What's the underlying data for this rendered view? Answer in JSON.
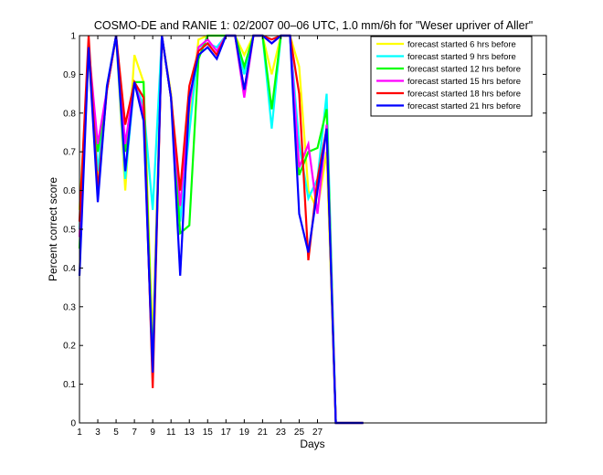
{
  "chart_data": {
    "type": "line",
    "title": "COSMO-DE and RANIE 1: 02/2007 00–06 UTC, 1.0 mm/6h for \"Weser upriver of Aller\"",
    "xlabel": "Days",
    "ylabel": "Percent correct score",
    "xlim": [
      1,
      52
    ],
    "ylim": [
      0,
      1
    ],
    "x_ticks": [
      1,
      3,
      5,
      7,
      9,
      11,
      13,
      15,
      17,
      19,
      21,
      23,
      25,
      27
    ],
    "y_ticks": [
      "0",
      "0.1",
      "0.2",
      "0.3",
      "0.4",
      "0.5",
      "0.6",
      "0.7",
      "0.8",
      "0.9",
      "1"
    ],
    "y_tick_values": [
      0,
      0.1,
      0.2,
      0.3,
      0.4,
      0.5,
      0.6,
      0.7,
      0.8,
      0.9,
      1
    ],
    "legend_position": "top-right",
    "grid": false,
    "x": [
      1,
      2,
      3,
      4,
      5,
      6,
      7,
      8,
      9,
      10,
      11,
      12,
      13,
      14,
      15,
      16,
      17,
      18,
      19,
      20,
      21,
      22,
      23,
      24,
      25,
      26,
      27,
      28,
      29,
      30,
      31,
      32
    ],
    "series": [
      {
        "name": "forecast started 6 hrs before",
        "color": "#ffff00",
        "values": [
          0.55,
          0.95,
          0.62,
          0.86,
          1.0,
          0.6,
          0.95,
          0.88,
          0.2,
          1.0,
          0.85,
          0.55,
          0.78,
          0.99,
          1.0,
          1.0,
          1.0,
          1.0,
          0.95,
          1.0,
          1.0,
          0.9,
          1.0,
          1.0,
          0.92,
          0.6,
          0.55,
          0.7,
          0.0,
          0.0,
          0.0,
          0.0
        ]
      },
      {
        "name": "forecast started 9 hrs before",
        "color": "#00ffff",
        "values": [
          0.5,
          0.96,
          0.65,
          0.87,
          1.0,
          0.63,
          0.88,
          0.82,
          0.55,
          1.0,
          0.84,
          0.52,
          0.75,
          0.97,
          0.98,
          0.97,
          1.0,
          1.0,
          0.9,
          1.0,
          1.0,
          0.76,
          1.0,
          1.0,
          0.72,
          0.58,
          0.63,
          0.85,
          0.0,
          0.0,
          0.0,
          0.0
        ]
      },
      {
        "name": "forecast started 12 hrs before",
        "color": "#00ff00",
        "values": [
          0.45,
          0.96,
          0.7,
          0.86,
          1.0,
          0.7,
          0.88,
          0.88,
          0.14,
          1.0,
          0.84,
          0.49,
          0.51,
          0.94,
          1.0,
          1.0,
          1.0,
          1.0,
          0.92,
          1.0,
          1.0,
          0.81,
          1.0,
          1.0,
          0.64,
          0.7,
          0.71,
          0.81,
          0.0,
          0.0,
          0.0,
          0.0
        ]
      },
      {
        "name": "forecast started 15 hrs before",
        "color": "#ff00ff",
        "values": [
          0.48,
          0.97,
          0.72,
          0.86,
          1.0,
          0.72,
          0.88,
          0.8,
          0.12,
          1.0,
          0.84,
          0.56,
          0.82,
          0.97,
          0.99,
          0.96,
          1.0,
          1.0,
          0.84,
          1.0,
          1.0,
          0.98,
          1.0,
          1.0,
          0.66,
          0.72,
          0.54,
          0.77,
          0.0,
          0.0,
          0.0,
          0.0
        ]
      },
      {
        "name": "forecast started 18 hrs before",
        "color": "#ff0000",
        "values": [
          0.52,
          1.0,
          0.6,
          0.86,
          1.0,
          0.77,
          0.88,
          0.84,
          0.09,
          1.0,
          0.84,
          0.6,
          0.87,
          0.96,
          0.98,
          0.95,
          1.0,
          1.0,
          0.86,
          1.0,
          1.0,
          0.99,
          1.0,
          1.0,
          0.85,
          0.42,
          0.63,
          0.76,
          0.0,
          0.0,
          0.0,
          0.0
        ]
      },
      {
        "name": "forecast started 21 hrs before",
        "color": "#0000ff",
        "values": [
          0.38,
          0.97,
          0.57,
          0.87,
          1.0,
          0.65,
          0.88,
          0.78,
          0.13,
          1.0,
          0.84,
          0.38,
          0.84,
          0.95,
          0.97,
          0.94,
          1.0,
          1.0,
          0.86,
          1.0,
          1.0,
          0.98,
          1.0,
          1.0,
          0.54,
          0.44,
          0.6,
          0.76,
          0.0,
          0.0,
          0.0,
          0.0
        ]
      }
    ]
  }
}
